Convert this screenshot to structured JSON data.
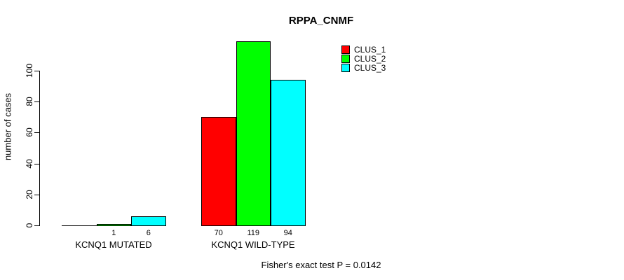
{
  "title": "RPPA_CNMF",
  "footer": "Fisher's exact test P = 0.0142",
  "chart_data": {
    "type": "bar",
    "title": "RPPA_CNMF",
    "xlabel": "",
    "ylabel": "number of cases",
    "categories": [
      "KCNQ1 MUTATED",
      "KCNQ1 WILD-TYPE"
    ],
    "series": [
      {
        "name": "CLUS_1",
        "color": "#FF0000",
        "values": [
          0,
          70
        ]
      },
      {
        "name": "CLUS_2",
        "color": "#00FF00",
        "values": [
          1,
          119
        ]
      },
      {
        "name": "CLUS_3",
        "color": "#00FFFF",
        "values": [
          6,
          94
        ]
      }
    ],
    "bar_value_labels": [
      [
        "",
        "1",
        "6"
      ],
      [
        "70",
        "119",
        "94"
      ]
    ],
    "yticks": [
      0,
      20,
      40,
      60,
      80,
      100
    ],
    "ylim": [
      0,
      119
    ],
    "grid": false,
    "legend_position": "top-right",
    "annotation": "Fisher's exact test P = 0.0142",
    "bar_border_color": "#000000"
  }
}
